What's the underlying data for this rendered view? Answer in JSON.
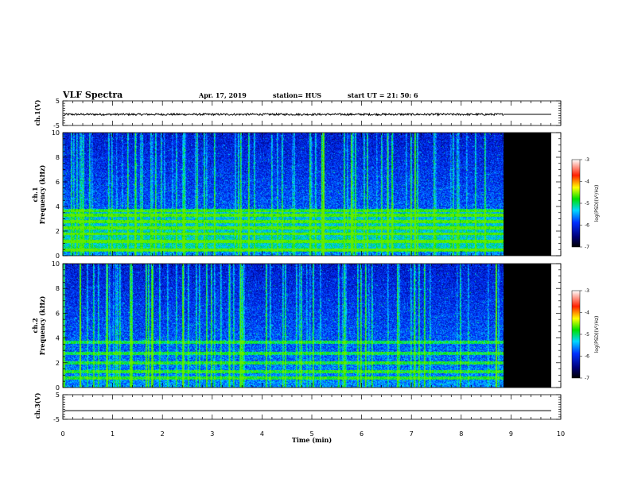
{
  "header": {
    "title": "VLF Spectra",
    "date": "Apr. 17, 2019",
    "station": "station= HUS",
    "start": "start UT =  21: 50: 6"
  },
  "chart_data": {
    "type": "heatmap",
    "title": "VLF Spectra",
    "xlabel": "Time (min)",
    "xlim": [
      0,
      10
    ],
    "x_ticks": [
      "0",
      "1",
      "2",
      "3",
      "4",
      "5",
      "6",
      "7",
      "8",
      "9",
      "10"
    ],
    "data_end_min": 8.85,
    "panels": [
      {
        "name": "ch1-waveform",
        "ylabel": "ch.1(V)",
        "ylim": [
          -5,
          5
        ],
        "y_ticks": [
          "5",
          "-5"
        ],
        "signal_level": -0.5,
        "noise": 0.4
      },
      {
        "name": "ch1-spectrogram",
        "ylabel_top": "ch.1",
        "ylabel": "Frequency (kHz)",
        "ylim": [
          0,
          10
        ],
        "y_ticks": [
          "0",
          "2",
          "4",
          "6",
          "8",
          "10"
        ],
        "colorbar": {
          "label": "log(PSD)(V²/Hz)",
          "range": [
            -7,
            -3
          ],
          "ticks": [
            "-3",
            "-4",
            "-5",
            "-6",
            "-7"
          ]
        },
        "bright_bands_khz": [
          0.5,
          1.2,
          1.8,
          2.3,
          2.8,
          3.3,
          3.7
        ]
      },
      {
        "name": "ch2-spectrogram",
        "ylabel_top": "ch.2",
        "ylabel": "Frequency (kHz)",
        "ylim": [
          0,
          10
        ],
        "y_ticks": [
          "0",
          "2",
          "4",
          "6",
          "8",
          "10"
        ],
        "colorbar": {
          "label": "log(PSD)(V²/Hz)",
          "range": [
            -7,
            -3
          ],
          "ticks": [
            "-3",
            "-4",
            "-5",
            "-6",
            "-7"
          ]
        },
        "bright_bands_khz": [
          0.8,
          1.3,
          2.0,
          2.8,
          3.7
        ]
      },
      {
        "name": "ch3-waveform",
        "ylabel": "ch.3(V)",
        "ylim": [
          -5,
          5
        ],
        "y_ticks": [
          "5",
          "-5"
        ],
        "signal_level": -1.5,
        "noise": 0
      }
    ]
  }
}
